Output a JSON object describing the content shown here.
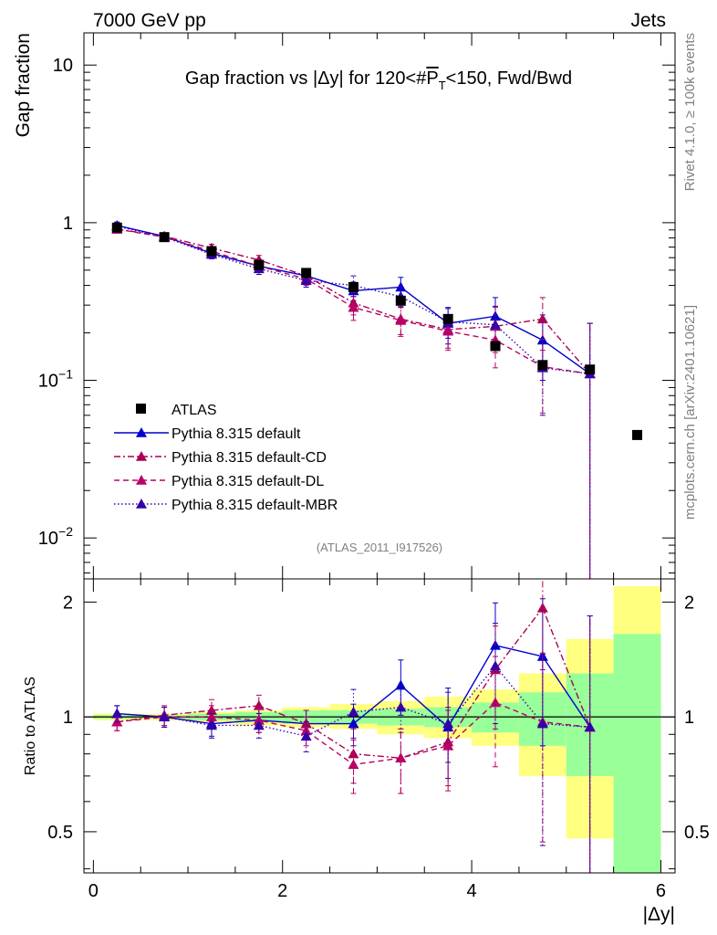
{
  "header": {
    "left": "7000 GeV pp",
    "right": "Jets"
  },
  "side_labels": {
    "top": "Rivet 4.1.0, ≥ 100k events",
    "bottom": "mcplots.cern.ch [arXiv:2401.10621]"
  },
  "chart_data": [
    {
      "type": "scatter",
      "title": "Gap fraction vs |Δy| for 120<#P̄T<150, Fwd/Bwd",
      "title_parts": {
        "prefix": "Gap fraction vs |Δy| for 120<#",
        "p": "P",
        "t": "T",
        "suffix": "<150, Fwd/Bwd"
      },
      "ylabel": "Gap fraction",
      "xlabel": "|Δy|",
      "yscale": "log",
      "ylim": [
        0.0055,
        16
      ],
      "xlim": [
        -0.1,
        6.15
      ],
      "x_ticks": [
        0,
        2,
        4,
        6
      ],
      "y_ticks": [
        {
          "value": 10,
          "base": "10",
          "exp": ""
        },
        {
          "value": 1,
          "base": "1",
          "exp": ""
        },
        {
          "value": 0.1,
          "base": "10",
          "exp": "−1"
        },
        {
          "value": 0.01,
          "base": "10",
          "exp": "−2"
        }
      ],
      "watermark": "(ATLAS_2011_I917526)",
      "legend_position": "lower-left",
      "series": [
        {
          "name": "ATLAS",
          "color": "#000000",
          "marker": "square",
          "style": "none",
          "x": [
            0.25,
            0.75,
            1.25,
            1.75,
            2.25,
            2.75,
            3.25,
            3.75,
            4.25,
            4.75,
            5.25,
            5.75
          ],
          "y": [
            0.93,
            0.81,
            0.66,
            0.54,
            0.48,
            0.39,
            0.32,
            0.245,
            0.165,
            0.125,
            0.117,
            0.045
          ]
        },
        {
          "name": "Pythia 8.315 default",
          "color": "#0000cc",
          "marker": "triangle",
          "style": "solid",
          "x": [
            0.25,
            0.75,
            1.25,
            1.75,
            2.25,
            2.75,
            3.25,
            3.75,
            4.25,
            4.75,
            5.25
          ],
          "y": [
            0.96,
            0.82,
            0.64,
            0.53,
            0.46,
            0.37,
            0.39,
            0.23,
            0.255,
            0.18,
            0.11
          ],
          "err": [
            0.05,
            0.04,
            0.04,
            0.04,
            0.04,
            0.05,
            0.06,
            0.06,
            0.08,
            0.08,
            0.12
          ]
        },
        {
          "name": "Pythia 8.315 default-CD",
          "color": "#aa0055",
          "marker": "triangle",
          "style": "dashdot",
          "x": [
            0.25,
            0.75,
            1.25,
            1.75,
            2.25,
            2.75,
            3.25,
            3.75,
            4.25,
            4.75,
            5.25
          ],
          "y": [
            0.91,
            0.82,
            0.69,
            0.58,
            0.46,
            0.31,
            0.245,
            0.21,
            0.22,
            0.245,
            0.11
          ],
          "err": [
            0.05,
            0.04,
            0.04,
            0.04,
            0.04,
            0.05,
            0.05,
            0.05,
            0.07,
            0.09,
            0.12
          ]
        },
        {
          "name": "Pythia 8.315 default-DL",
          "color": "#bb0066",
          "marker": "triangle",
          "style": "dashed",
          "x": [
            0.25,
            0.75,
            1.25,
            1.75,
            2.25,
            2.75,
            3.25,
            3.75,
            4.25,
            4.75,
            5.25
          ],
          "y": [
            0.91,
            0.81,
            0.66,
            0.53,
            0.44,
            0.29,
            0.24,
            0.205,
            0.18,
            0.122,
            0.11
          ],
          "err": [
            0.05,
            0.04,
            0.04,
            0.04,
            0.04,
            0.05,
            0.05,
            0.05,
            0.06,
            0.06,
            0.12
          ]
        },
        {
          "name": "Pythia 8.315 default-MBR",
          "color": "#3300aa",
          "marker": "triangle",
          "style": "dotted",
          "x": [
            0.25,
            0.75,
            1.25,
            1.75,
            2.25,
            2.75,
            3.25,
            3.75,
            4.25,
            4.75,
            5.25
          ],
          "y": [
            0.95,
            0.81,
            0.63,
            0.51,
            0.43,
            0.4,
            0.34,
            0.235,
            0.225,
            0.12,
            0.11
          ],
          "err": [
            0.05,
            0.04,
            0.04,
            0.04,
            0.04,
            0.06,
            0.05,
            0.05,
            0.07,
            0.06,
            0.12
          ]
        }
      ]
    },
    {
      "type": "scatter",
      "ylabel": "Ratio to ATLAS",
      "yscale": "log",
      "ylim": [
        0.39,
        2.3
      ],
      "xlim": [
        -0.1,
        6.15
      ],
      "y_ticks": [
        {
          "value": 2,
          "label": "2"
        },
        {
          "value": 1,
          "label": "1"
        },
        {
          "value": 0.5,
          "label": "0.5"
        }
      ],
      "bands": {
        "x_edges": [
          0,
          0.5,
          1,
          1.5,
          2,
          2.5,
          3,
          3.5,
          4,
          4.5,
          5,
          5.5,
          6
        ],
        "yellow_colour": "#ffff80",
        "green_colour": "#99ff99",
        "yellow_lo": [
          0.98,
          0.98,
          0.97,
          0.95,
          0.94,
          0.93,
          0.9,
          0.88,
          0.84,
          0.7,
          0.48,
          0.3
        ],
        "yellow_hi": [
          1.02,
          1.02,
          1.03,
          1.04,
          1.06,
          1.08,
          1.1,
          1.13,
          1.18,
          1.3,
          1.6,
          2.2
        ],
        "green_lo": [
          0.99,
          0.99,
          0.98,
          0.97,
          0.96,
          0.96,
          0.95,
          0.94,
          0.91,
          0.84,
          0.7,
          0.3
        ],
        "green_hi": [
          1.01,
          1.01,
          1.02,
          1.03,
          1.04,
          1.04,
          1.05,
          1.06,
          1.09,
          1.16,
          1.3,
          1.65
        ]
      },
      "series": [
        {
          "name": "Pythia 8.315 default",
          "color": "#0000cc",
          "style": "solid",
          "x": [
            0.25,
            0.75,
            1.25,
            1.75,
            2.25,
            2.75,
            3.25,
            3.75,
            4.25,
            4.75,
            5.25
          ],
          "y": [
            1.02,
            1.0,
            0.96,
            0.98,
            0.96,
            0.96,
            1.21,
            0.94,
            1.54,
            1.44,
            0.94
          ],
          "err": [
            0.05,
            0.06,
            0.07,
            0.07,
            0.08,
            0.12,
            0.2,
            0.25,
            0.45,
            0.6,
            0.9
          ]
        },
        {
          "name": "Pythia 8.315 default-CD",
          "color": "#aa0055",
          "style": "dashdot",
          "x": [
            0.25,
            0.75,
            1.25,
            1.75,
            2.25,
            2.75,
            3.25,
            3.75,
            4.25,
            4.75,
            5.25
          ],
          "y": [
            0.97,
            1.01,
            1.04,
            1.07,
            0.96,
            0.8,
            0.78,
            0.86,
            1.33,
            1.93,
            0.94
          ],
          "err": [
            0.05,
            0.06,
            0.07,
            0.07,
            0.08,
            0.13,
            0.15,
            0.2,
            0.4,
            0.6,
            0.9
          ]
        },
        {
          "name": "Pythia 8.315 default-DL",
          "color": "#bb0066",
          "style": "dashed",
          "x": [
            0.25,
            0.75,
            1.25,
            1.75,
            2.25,
            2.75,
            3.25,
            3.75,
            4.25,
            4.75,
            5.25
          ],
          "y": [
            0.97,
            1.0,
            1.0,
            0.98,
            0.92,
            0.75,
            0.78,
            0.84,
            1.09,
            0.97,
            0.94
          ],
          "err": [
            0.05,
            0.06,
            0.07,
            0.07,
            0.08,
            0.12,
            0.15,
            0.2,
            0.35,
            0.5,
            0.9
          ]
        },
        {
          "name": "Pythia 8.315 default-MBR",
          "color": "#3300aa",
          "style": "dotted",
          "x": [
            0.25,
            0.75,
            1.25,
            1.75,
            2.25,
            2.75,
            3.25,
            3.75,
            4.25,
            4.75,
            5.25
          ],
          "y": [
            1.02,
            1.0,
            0.95,
            0.95,
            0.89,
            1.03,
            1.06,
            0.96,
            1.36,
            0.96,
            0.94
          ],
          "err": [
            0.05,
            0.06,
            0.07,
            0.07,
            0.08,
            0.15,
            0.15,
            0.2,
            0.4,
            0.5,
            0.9
          ]
        }
      ]
    }
  ]
}
